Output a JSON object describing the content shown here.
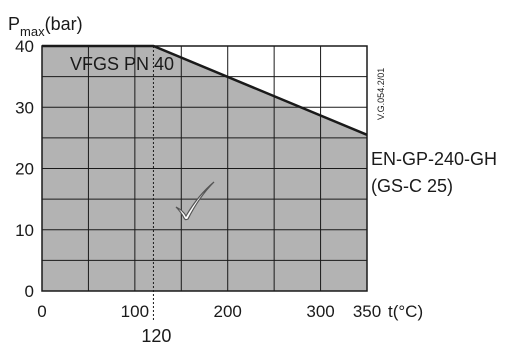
{
  "chart_data": {
    "type": "area",
    "title": "",
    "ylabel_main": "P",
    "ylabel_sub": "max",
    "ylabel_unit": "(bar)",
    "xlabel": "t(°C)",
    "xlim": [
      0,
      350
    ],
    "ylim": [
      0,
      40
    ],
    "x_ticks": [
      "0",
      "100",
      "200",
      "300",
      "350"
    ],
    "x_tick_values": [
      0,
      100,
      200,
      300,
      350
    ],
    "y_ticks": [
      "0",
      "10",
      "20",
      "30",
      "40"
    ],
    "y_tick_values": [
      0,
      10,
      20,
      30,
      40
    ],
    "marker_x": 120,
    "marker_label": "120",
    "grid": true,
    "fill_color": "#b3b3b3",
    "line_color": "#1a1a1a",
    "series": [
      {
        "name": "",
        "x": [
          0,
          120,
          350
        ],
        "y": [
          40,
          40,
          25.5
        ]
      }
    ],
    "annotations": {
      "product": "VFGS PN 40",
      "material_line1": "EN-GP-240-GH",
      "material_line2": "(GS-C 25)",
      "drawing_code": "V.G.054.2/01"
    }
  }
}
